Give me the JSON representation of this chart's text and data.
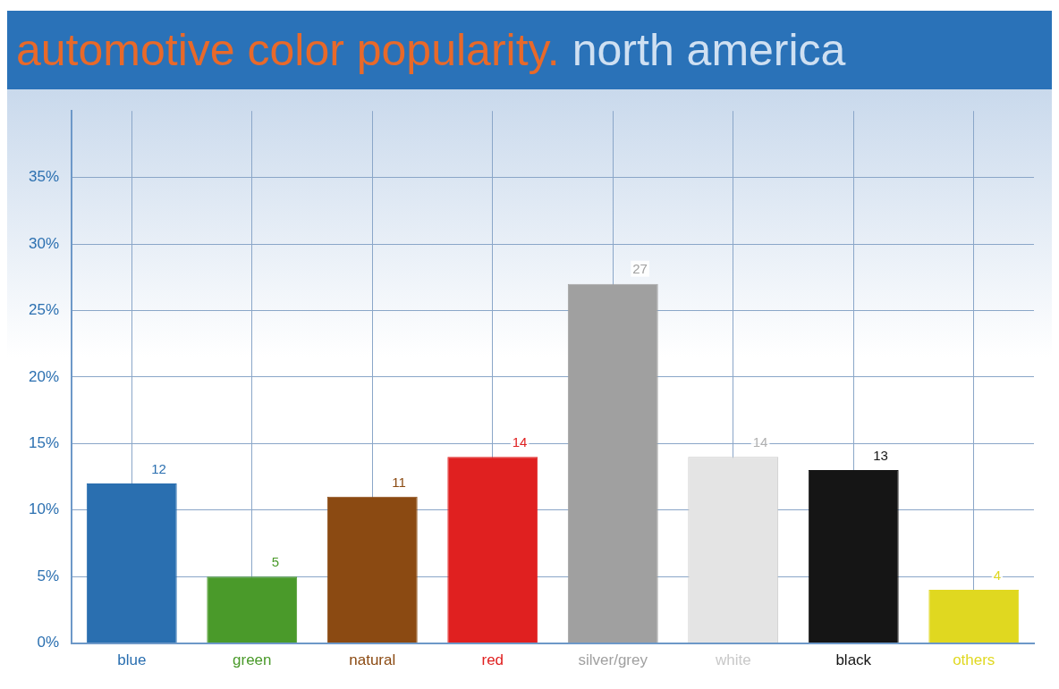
{
  "chart_data": {
    "type": "bar",
    "title": "automotive color popularity. north america",
    "categories": [
      "blue",
      "green",
      "natural",
      "red",
      "silver/grey",
      "white",
      "black",
      "others"
    ],
    "values": [
      12,
      5,
      11,
      14,
      27,
      14,
      13,
      4
    ],
    "colors": [
      "#2a6fb0",
      "#4a9a2a",
      "#8b4a12",
      "#e02020",
      "#a0a0a0",
      "#e4e4e4",
      "#151515",
      "#e0d820"
    ],
    "ylim": [
      0,
      40
    ],
    "yticks": [
      {
        "value": 0,
        "label": "0%"
      },
      {
        "value": 5,
        "label": "5%"
      },
      {
        "value": 10,
        "label": "10%"
      },
      {
        "value": 15,
        "label": "15%"
      },
      {
        "value": 20,
        "label": "20%"
      },
      {
        "value": 25,
        "label": "25%"
      },
      {
        "value": 30,
        "label": "30%"
      },
      {
        "value": 35,
        "label": "35%"
      }
    ],
    "grid": true,
    "data_labels": true,
    "legend": false
  }
}
